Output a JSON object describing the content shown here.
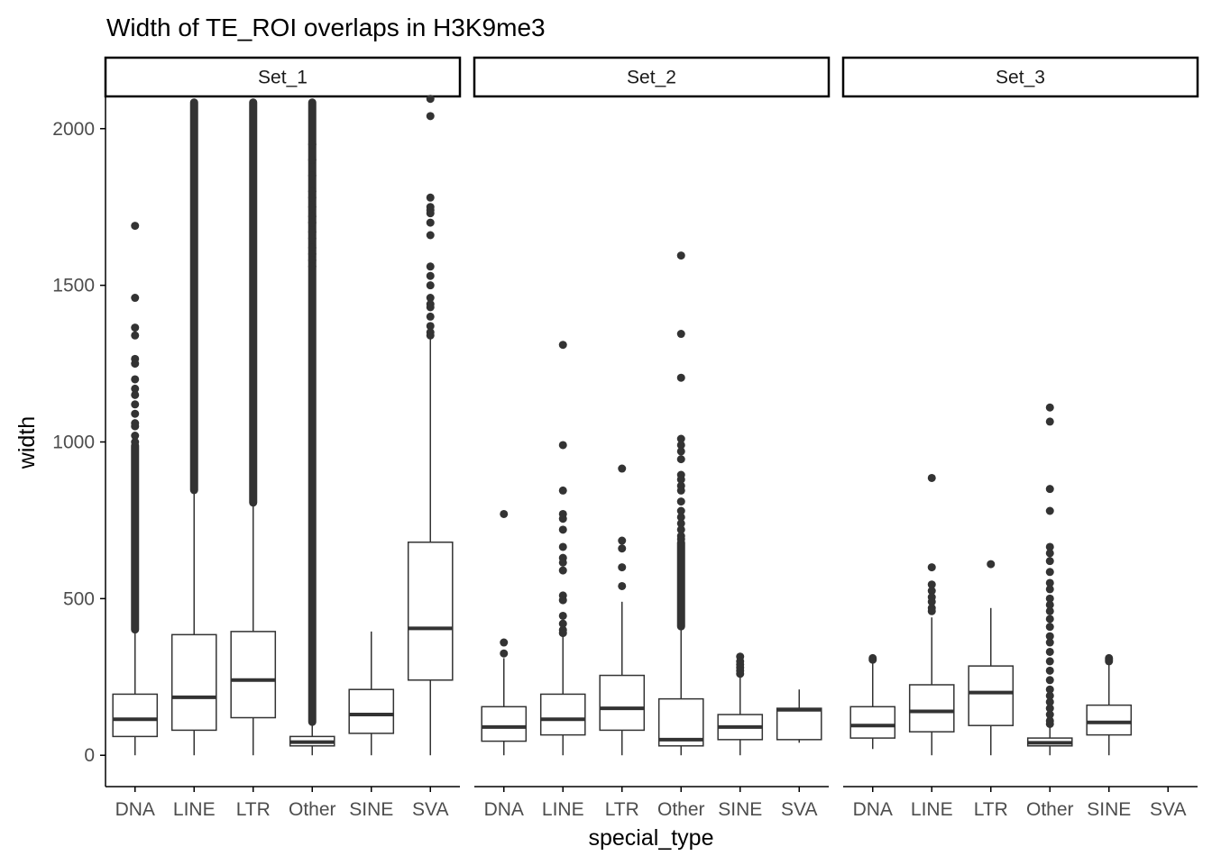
{
  "chart_data": {
    "type": "boxplot",
    "title": "Width of TE_ROI overlaps in H3K9me3",
    "xlabel": "special_type",
    "ylabel": "width",
    "categories": [
      "DNA",
      "LINE",
      "LTR",
      "Other",
      "SINE",
      "SVA"
    ],
    "yticks": [
      0,
      500,
      1000,
      1500,
      2000
    ],
    "ylim": [
      -100,
      2100
    ],
    "colors": {
      "box": "#333333",
      "outlier": "#333333",
      "axis": "#000000",
      "tick_label": "#4d4d4d"
    },
    "panels": [
      {
        "name": "Set_1",
        "boxes": [
          {
            "category": "DNA",
            "min": 0,
            "q1": 60,
            "median": 115,
            "q3": 195,
            "max": 395,
            "outliers": [
              1690,
              1460,
              1365,
              1340,
              1265,
              1250,
              1200,
              1170,
              1150,
              1120,
              1090,
              1060,
              1050,
              1020,
              1000
            ],
            "outlier_band": [
              400,
              990
            ]
          },
          {
            "category": "LINE",
            "min": 0,
            "q1": 80,
            "median": 185,
            "q3": 385,
            "max": 840,
            "outliers": [],
            "outlier_band": [
              845,
              2085
            ]
          },
          {
            "category": "LTR",
            "min": 0,
            "q1": 120,
            "median": 240,
            "q3": 395,
            "max": 800,
            "outliers": [],
            "outlier_band": [
              805,
              2085
            ]
          },
          {
            "category": "Other",
            "min": 0,
            "q1": 30,
            "median": 42,
            "q3": 60,
            "max": 100,
            "outliers": [
              1950,
              1900,
              1850,
              1800,
              1780,
              1750,
              1720,
              1700,
              1670,
              1650,
              1620,
              1600,
              1580,
              1560
            ],
            "outlier_band": [
              105,
              2085
            ]
          },
          {
            "category": "SINE",
            "min": 0,
            "q1": 70,
            "median": 130,
            "q3": 210,
            "max": 395,
            "outliers": [],
            "outlier_band": null
          },
          {
            "category": "SVA",
            "min": 0,
            "q1": 240,
            "median": 405,
            "q3": 680,
            "max": 1330,
            "outliers": [
              2095,
              2040,
              1780,
              1750,
              1740,
              1730,
              1700,
              1660,
              1560,
              1530,
              1500,
              1460,
              1440,
              1430,
              1400,
              1370,
              1350,
              1340
            ],
            "outlier_band": null
          }
        ]
      },
      {
        "name": "Set_2",
        "boxes": [
          {
            "category": "DNA",
            "min": 0,
            "q1": 45,
            "median": 90,
            "q3": 155,
            "max": 310,
            "outliers": [
              770,
              360,
              325
            ],
            "outlier_band": null
          },
          {
            "category": "LINE",
            "min": 0,
            "q1": 65,
            "median": 115,
            "q3": 195,
            "max": 380,
            "outliers": [
              1310,
              990,
              845,
              770,
              755,
              720,
              665,
              630,
              615,
              590,
              510,
              495,
              445,
              420,
              400,
              390
            ],
            "outlier_band": null
          },
          {
            "category": "LTR",
            "min": 0,
            "q1": 80,
            "median": 150,
            "q3": 255,
            "max": 490,
            "outliers": [
              915,
              685,
              660,
              600,
              540
            ],
            "outlier_band": null
          },
          {
            "category": "Other",
            "min": 0,
            "q1": 30,
            "median": 50,
            "q3": 180,
            "max": 400,
            "outliers": [
              1595,
              1345,
              1205,
              1010,
              990,
              970,
              945,
              895,
              880,
              860,
              845,
              810,
              780,
              760,
              740,
              720,
              700,
              690
            ],
            "outlier_band": [
              410,
              680
            ]
          },
          {
            "category": "SINE",
            "min": 0,
            "q1": 50,
            "median": 90,
            "q3": 130,
            "max": 250,
            "outliers": [
              315,
              300,
              290,
              280,
              270,
              260
            ],
            "outlier_band": null
          },
          {
            "category": "SVA",
            "min": 40,
            "q1": 50,
            "median": 145,
            "q3": 150,
            "max": 210,
            "outliers": [],
            "outlier_band": null
          }
        ]
      },
      {
        "name": "Set_3",
        "boxes": [
          {
            "category": "DNA",
            "min": 20,
            "q1": 55,
            "median": 95,
            "q3": 155,
            "max": 300,
            "outliers": [
              310,
              305
            ],
            "outlier_band": null
          },
          {
            "category": "LINE",
            "min": 0,
            "q1": 75,
            "median": 140,
            "q3": 225,
            "max": 440,
            "outliers": [
              885,
              600,
              545,
              525,
              505,
              490,
              470,
              460
            ],
            "outlier_band": null
          },
          {
            "category": "LTR",
            "min": 0,
            "q1": 95,
            "median": 200,
            "q3": 285,
            "max": 470,
            "outliers": [
              610
            ],
            "outlier_band": null
          },
          {
            "category": "Other",
            "min": 0,
            "q1": 30,
            "median": 40,
            "q3": 55,
            "max": 90,
            "outliers": [
              1110,
              1065,
              850,
              780,
              665,
              645,
              620,
              585,
              550,
              530,
              500,
              480,
              460,
              435,
              410,
              380,
              360,
              330,
              300,
              270,
              240,
              210,
              190,
              170,
              150,
              130,
              110,
              100
            ],
            "outlier_band": null
          },
          {
            "category": "SINE",
            "min": 0,
            "q1": 65,
            "median": 105,
            "q3": 160,
            "max": 290,
            "outliers": [
              310,
              305,
              300
            ],
            "outlier_band": null
          },
          {
            "category": "SVA",
            "min": null,
            "q1": null,
            "median": null,
            "q3": null,
            "max": null,
            "outliers": [],
            "outlier_band": null
          }
        ]
      }
    ]
  }
}
